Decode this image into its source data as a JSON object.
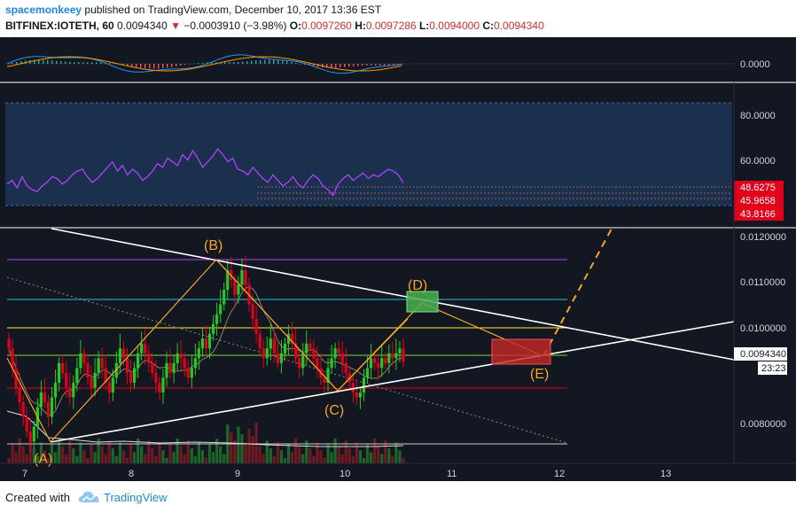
{
  "header": {
    "author": "spacemonkeey",
    "published_text": "published on TradingView.com, December 10, 2017 13:36 EST",
    "symbol": "BITFINEX:IOTETH, 60",
    "last": "0.0094340",
    "change": "−0.0003910 (−3.98%)",
    "open_label": "O:",
    "open": "0.0097260",
    "high_label": "H:",
    "high": "0.0097286",
    "low_label": "L:",
    "low": "0.0094000",
    "close_label": "C:",
    "close": "0.0094340"
  },
  "footer": {
    "created_with": "Created with",
    "brand": "TradingView"
  },
  "colors": {
    "background": "#131722",
    "grid": "#2a2e39",
    "axis_text": "#d1d4dc",
    "up": "#26c924",
    "down": "#e3001b",
    "pattern": "#f5a623",
    "trend": "#ffffff",
    "rsi": "#b040ff",
    "label_bg": "#e3001b"
  },
  "chart_data": [
    {
      "type": "line",
      "panel": "macd",
      "y_ticks": [
        "0.0000"
      ],
      "ylim": [
        -1,
        1
      ]
    },
    {
      "type": "line",
      "panel": "rsi",
      "y_ticks": [
        "80.0000",
        "60.0000"
      ],
      "ylim": [
        32,
        88
      ],
      "band": [
        40,
        85
      ],
      "value_labels": [
        "48.6275",
        "45.9658",
        "43.8166"
      ],
      "series": [
        {
          "values": [
            48,
            50,
            46,
            52,
            47,
            45,
            44,
            47,
            49,
            52,
            51,
            48,
            50,
            53,
            55,
            56,
            52,
            49,
            51,
            54,
            57,
            60,
            55,
            58,
            53,
            56,
            54,
            50,
            52,
            55,
            59,
            57,
            62,
            60,
            58,
            64,
            61,
            66,
            62,
            57,
            60,
            63,
            67,
            64,
            60,
            62,
            56,
            55,
            53,
            57,
            54,
            51,
            49,
            53,
            50,
            47,
            49,
            52,
            48,
            46,
            50,
            53,
            51,
            47,
            45,
            42,
            48,
            51,
            53,
            50,
            52,
            54,
            51,
            53,
            52,
            54,
            56,
            55,
            53,
            48.6
          ]
        }
      ]
    },
    {
      "type": "candlestick",
      "panel": "price",
      "x_ticks": [
        "7",
        "8",
        "9",
        "10",
        "11",
        "12",
        "13"
      ],
      "y_ticks": [
        "0.0120000",
        "0.0110000",
        "0.0100000",
        "0.0080000"
      ],
      "ylim": [
        0.00735,
        0.01215
      ],
      "last_price_label": "0.0094340",
      "countdown_label": "23:23",
      "wave_labels": [
        "(A)",
        "(B)",
        "(C)",
        "(D)",
        "(E)"
      ],
      "close": [
        0.0097,
        0.0093,
        0.0089,
        0.0086,
        0.0083,
        0.008,
        0.0078,
        0.0081,
        0.0085,
        0.0088,
        0.0086,
        0.0083,
        0.0087,
        0.009,
        0.0094,
        0.0092,
        0.0089,
        0.0087,
        0.009,
        0.0093,
        0.0096,
        0.0094,
        0.0091,
        0.0089,
        0.0092,
        0.0095,
        0.0093,
        0.009,
        0.0088,
        0.0091,
        0.0094,
        0.0097,
        0.0095,
        0.0092,
        0.009,
        0.0093,
        0.0096,
        0.0098,
        0.0096,
        0.0094,
        0.0092,
        0.009,
        0.0088,
        0.0091,
        0.0094,
        0.0092,
        0.0094,
        0.0096,
        0.0095,
        0.0093,
        0.0091,
        0.0093,
        0.0095,
        0.0097,
        0.0099,
        0.0097,
        0.01,
        0.0102,
        0.0104,
        0.0106,
        0.0109,
        0.0113,
        0.0111,
        0.0108,
        0.011,
        0.0113,
        0.011,
        0.0106,
        0.0103,
        0.01,
        0.0097,
        0.0095,
        0.0097,
        0.0099,
        0.0096,
        0.0094,
        0.0096,
        0.0098,
        0.01,
        0.0098,
        0.0095,
        0.0093,
        0.0096,
        0.0098,
        0.0097,
        0.0095,
        0.0093,
        0.0091,
        0.009,
        0.0093,
        0.0095,
        0.0097,
        0.0096,
        0.0094,
        0.0092,
        0.009,
        0.0088,
        0.0087,
        0.0088,
        0.0091,
        0.0093,
        0.0095,
        0.0094,
        0.0093,
        0.0095,
        0.0094,
        0.0096,
        0.0095,
        0.0096,
        0.0097,
        0.00943
      ]
    }
  ]
}
